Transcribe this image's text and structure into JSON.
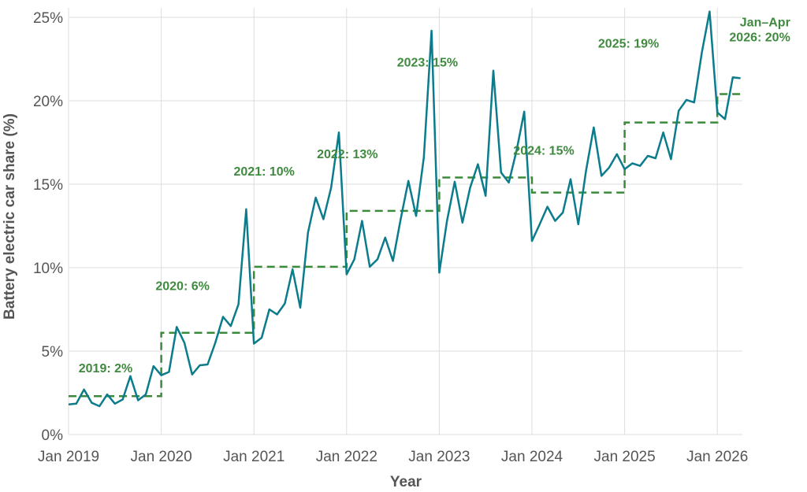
{
  "chart_data": {
    "type": "line",
    "xlabel": "Year",
    "ylabel": "Battery electric car share (%)",
    "x_range": [
      "2019-01",
      "2026-04"
    ],
    "ylim": [
      0,
      25
    ],
    "y_ticks": [
      0,
      5,
      10,
      15,
      20,
      25
    ],
    "y_tick_labels": [
      "0%",
      "5%",
      "10%",
      "15%",
      "20%",
      "25%"
    ],
    "x_ticks": [
      "2019-01",
      "2020-01",
      "2021-01",
      "2022-01",
      "2023-01",
      "2024-01",
      "2025-01",
      "2026-01"
    ],
    "x_tick_labels": [
      "Jan 2019",
      "Jan 2020",
      "Jan 2021",
      "Jan 2022",
      "Jan 2023",
      "Jan 2024",
      "Jan 2025",
      "Jan 2026"
    ],
    "grid": true,
    "colors": {
      "monthly": "#0a7c8c",
      "annual": "#3a8a3a",
      "annotation": "#3f8a3f",
      "grid": "#dddddd",
      "text": "#555555"
    },
    "series": [
      {
        "style": "line",
        "x": [
          "2019-01",
          "2019-02",
          "2019-03",
          "2019-04",
          "2019-05",
          "2019-06",
          "2019-07",
          "2019-08",
          "2019-09",
          "2019-10",
          "2019-11",
          "2019-12",
          "2020-01",
          "2020-02",
          "2020-03",
          "2020-04",
          "2020-05",
          "2020-06",
          "2020-07",
          "2020-08",
          "2020-09",
          "2020-10",
          "2020-11",
          "2020-12",
          "2021-01",
          "2021-02",
          "2021-03",
          "2021-04",
          "2021-05",
          "2021-06",
          "2021-07",
          "2021-08",
          "2021-09",
          "2021-10",
          "2021-11",
          "2021-12",
          "2022-01",
          "2022-02",
          "2022-03",
          "2022-04",
          "2022-05",
          "2022-06",
          "2022-07",
          "2022-08",
          "2022-09",
          "2022-10",
          "2022-11",
          "2022-12",
          "2023-01",
          "2023-02",
          "2023-03",
          "2023-04",
          "2023-05",
          "2023-06",
          "2023-07",
          "2023-08",
          "2023-09",
          "2023-10",
          "2023-11",
          "2023-12",
          "2024-01",
          "2024-02",
          "2024-03",
          "2024-04",
          "2024-05",
          "2024-06",
          "2024-07",
          "2024-08",
          "2024-09",
          "2024-10",
          "2024-11",
          "2024-12",
          "2025-01",
          "2025-02",
          "2025-03",
          "2025-04",
          "2025-05",
          "2025-06",
          "2025-07",
          "2025-08",
          "2025-09",
          "2025-10",
          "2025-11",
          "2025-12",
          "2026-01",
          "2026-02",
          "2026-03",
          "2026-04"
        ],
        "values": [
          1.8,
          1.85,
          2.7,
          1.9,
          1.7,
          2.4,
          1.85,
          2.1,
          3.5,
          2.05,
          2.4,
          4.1,
          3.55,
          3.75,
          6.45,
          5.5,
          3.6,
          4.15,
          4.2,
          5.5,
          7.05,
          6.5,
          7.8,
          13.5,
          5.45,
          5.8,
          7.5,
          7.2,
          7.85,
          9.9,
          7.6,
          12.1,
          14.2,
          12.9,
          14.8,
          18.1,
          9.6,
          10.5,
          12.8,
          10.05,
          10.5,
          11.8,
          10.4,
          12.9,
          15.2,
          13.1,
          16.6,
          24.2,
          9.7,
          12.8,
          15.15,
          12.7,
          14.8,
          16.2,
          14.3,
          21.8,
          15.7,
          15.1,
          17.0,
          19.35,
          11.6,
          12.6,
          13.65,
          12.8,
          13.3,
          15.3,
          12.6,
          15.8,
          18.4,
          15.5,
          16.0,
          16.8,
          15.9,
          16.25,
          16.1,
          16.7,
          16.55,
          18.1,
          16.5,
          19.4,
          20.05,
          19.9,
          22.9,
          25.35,
          19.3,
          18.9,
          21.4,
          21.35
        ]
      },
      {
        "style": "dashed-step",
        "periods": [
          {
            "start": "2019-01",
            "end": "2020-01",
            "value": 2.3
          },
          {
            "start": "2020-01",
            "end": "2021-01",
            "value": 6.1
          },
          {
            "start": "2021-01",
            "end": "2022-01",
            "value": 10.05
          },
          {
            "start": "2022-01",
            "end": "2023-01",
            "value": 13.4
          },
          {
            "start": "2023-01",
            "end": "2024-01",
            "value": 15.4
          },
          {
            "start": "2024-01",
            "end": "2025-01",
            "value": 14.5
          },
          {
            "start": "2025-01",
            "end": "2026-01",
            "value": 18.7
          },
          {
            "start": "2026-01",
            "end": "2026-04",
            "value": 20.4
          }
        ]
      }
    ],
    "annotations": [
      {
        "lines": [
          "2019: 2%"
        ],
        "x": "2019-06",
        "y": 2.3
      },
      {
        "lines": [
          "2020: 6%"
        ],
        "x": "2020-06",
        "y": 6.1
      },
      {
        "lines": [
          "2021: 10%"
        ],
        "x": "2021-06",
        "y": 10.05
      },
      {
        "lines": [
          "2022: 13%"
        ],
        "x": "2022-06",
        "y": 13.4
      },
      {
        "lines": [
          "2023: 15%"
        ],
        "x": "2023-06",
        "y": 15.4
      },
      {
        "lines": [
          "2024: 15%"
        ],
        "x": "2024-06",
        "y": 14.5
      },
      {
        "lines": [
          "2025: 19%"
        ],
        "x": "2025-06",
        "y": 18.7
      },
      {
        "lines": [
          "Jan–Apr",
          "2026: 20%"
        ],
        "x": "2026-03",
        "y": 20.4
      }
    ]
  }
}
